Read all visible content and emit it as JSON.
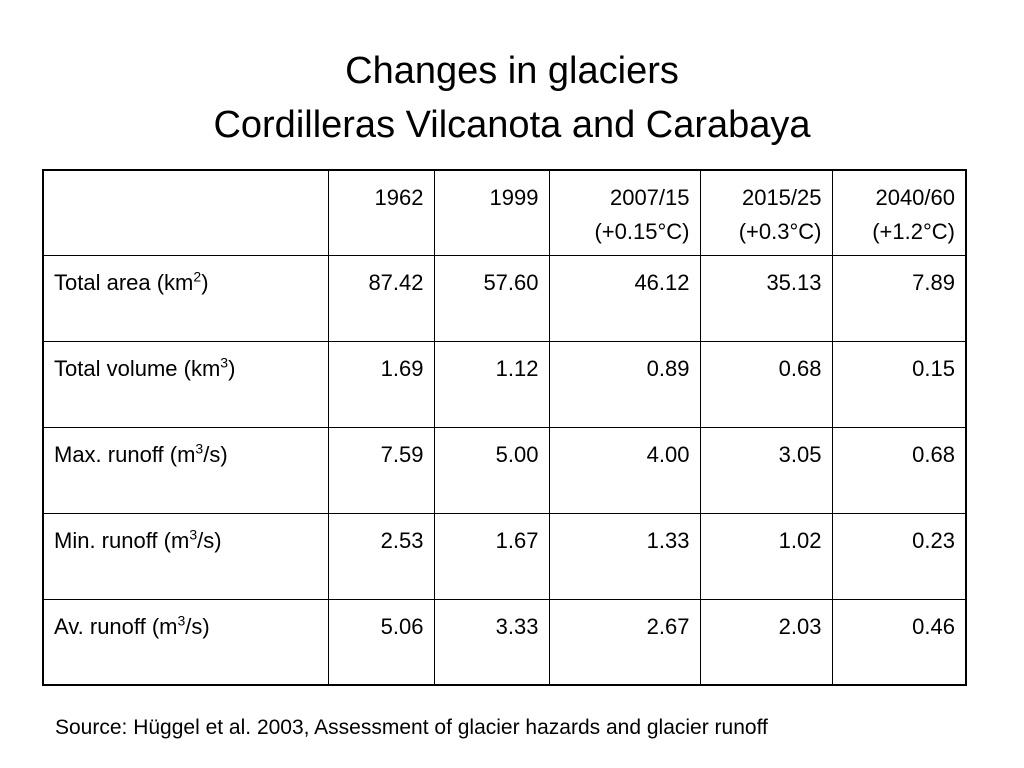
{
  "title": {
    "line1": "Changes in glaciers",
    "line2": "Cordilleras Vilcanota and Carabaya"
  },
  "table": {
    "columns": [
      {
        "line1": "1962",
        "line2": ""
      },
      {
        "line1": "1999",
        "line2": ""
      },
      {
        "line1": "2007/15",
        "line2": "(+0.15°C)"
      },
      {
        "line1": "2015/25",
        "line2": "(+0.3°C)"
      },
      {
        "line1": "2040/60",
        "line2": "(+1.2°C)"
      }
    ],
    "rows": [
      {
        "label_pre": "Total area (km",
        "label_sup": "2",
        "label_post": ")",
        "values": [
          "87.42",
          "57.60",
          "46.12",
          "35.13",
          "7.89"
        ]
      },
      {
        "label_pre": "Total volume (km",
        "label_sup": "3",
        "label_post": ")",
        "values": [
          "1.69",
          "1.12",
          "0.89",
          "0.68",
          "0.15"
        ]
      },
      {
        "label_pre": "Max. runoff (m",
        "label_sup": "3",
        "label_post": "/s)",
        "values": [
          "7.59",
          "5.00",
          "4.00",
          "3.05",
          "0.68"
        ]
      },
      {
        "label_pre": "Min. runoff (m",
        "label_sup": "3",
        "label_post": "/s)",
        "values": [
          "2.53",
          "1.67",
          "1.33",
          "1.02",
          "0.23"
        ]
      },
      {
        "label_pre": "Av. runoff (m",
        "label_sup": "3",
        "label_post": "/s)",
        "values": [
          "5.06",
          "3.33",
          "2.67",
          "2.03",
          "0.46"
        ]
      }
    ]
  },
  "source": "Source: Hüggel et al. 2003, Assessment of glacier hazards and glacier runoff"
}
